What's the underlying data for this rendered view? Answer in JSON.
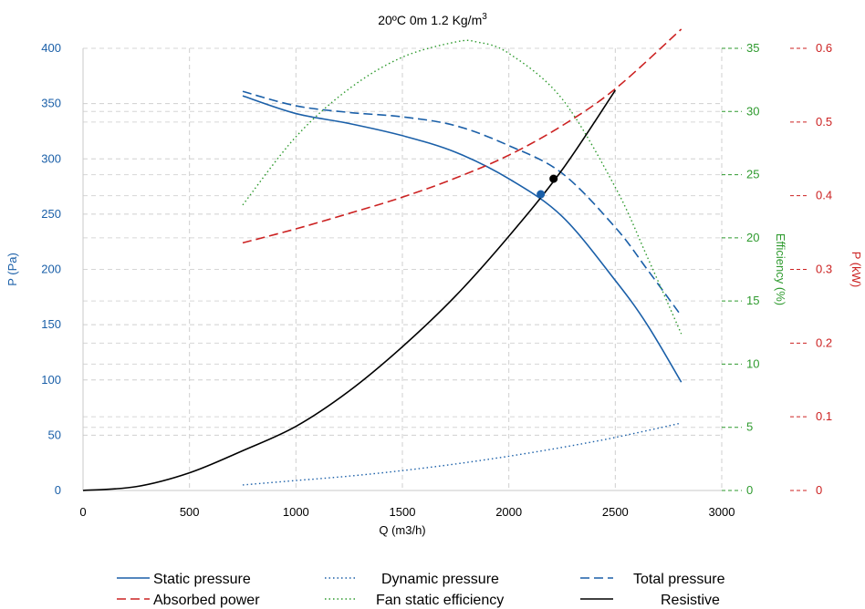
{
  "chart_data": {
    "type": "line",
    "title": "20ºC 0m 1.2 Kg/m",
    "title_sup": "3",
    "xlabel": "Q (m3/h)",
    "xlim": [
      0,
      3000
    ],
    "x_ticks": [
      "0",
      "500",
      "1000",
      "1500",
      "2000",
      "2500",
      "3000"
    ],
    "axes": {
      "pressure": {
        "label": "P (Pa)",
        "lim": [
          0,
          400
        ],
        "ticks": [
          "0",
          "50",
          "100",
          "150",
          "200",
          "250",
          "300",
          "350",
          "400"
        ],
        "color": "#1a5fa8"
      },
      "efficiency": {
        "label": "Efficiency (%)",
        "lim": [
          0,
          35
        ],
        "ticks": [
          "0",
          "5",
          "10",
          "15",
          "20",
          "25",
          "30",
          "35"
        ],
        "color": "#2e9a2e"
      },
      "power": {
        "label": "P (kW)",
        "lim": [
          0,
          0.6
        ],
        "ticks": [
          "0",
          "0.1",
          "0.2",
          "0.3",
          "0.4",
          "0.5",
          "0.6"
        ],
        "color": "#cc2222"
      }
    },
    "grid": true,
    "legend_position": "bottom",
    "series": [
      {
        "name": "Static pressure",
        "axis": "pressure",
        "color": "#1a5fa8",
        "dash": "solid",
        "x": [
          750,
          1000,
          1250,
          1500,
          1750,
          2000,
          2250,
          2500,
          2650,
          2810
        ],
        "y": [
          357,
          341,
          332,
          321,
          306,
          282,
          248,
          190,
          150,
          98
        ]
      },
      {
        "name": "Dynamic pressure",
        "axis": "pressure",
        "color": "#1a5fa8",
        "dash": "dotted",
        "x": [
          750,
          1000,
          1250,
          1500,
          1750,
          2000,
          2250,
          2500,
          2810
        ],
        "y": [
          5,
          9,
          13,
          18,
          24,
          31,
          39,
          48,
          61
        ]
      },
      {
        "name": "Total pressure",
        "axis": "pressure",
        "color": "#1a5fa8",
        "dash": "dashed",
        "x": [
          750,
          1000,
          1250,
          1500,
          1750,
          2000,
          2250,
          2500,
          2650,
          2810
        ],
        "y": [
          361,
          348,
          342,
          338,
          330,
          312,
          287,
          238,
          200,
          158
        ]
      },
      {
        "name": "Absorbed power",
        "axis": "power",
        "color": "#cc2222",
        "dash": "dashed",
        "x": [
          750,
          1000,
          1250,
          1500,
          1750,
          2000,
          2250,
          2500,
          2810
        ],
        "y": [
          0.336,
          0.355,
          0.376,
          0.398,
          0.424,
          0.455,
          0.495,
          0.545,
          0.626
        ]
      },
      {
        "name": "Fan static efficiency",
        "axis": "efficiency",
        "color": "#2e9a2e",
        "dash": "dotted",
        "x": [
          750,
          1000,
          1250,
          1500,
          1750,
          1850,
          2000,
          2250,
          2500,
          2650,
          2810
        ],
        "y": [
          22.6,
          28.0,
          31.8,
          34.3,
          35.5,
          35.5,
          34.6,
          31.0,
          24.0,
          18.5,
          12.4
        ]
      },
      {
        "name": "Resistive",
        "axis": "pressure",
        "color": "#000000",
        "dash": "solid",
        "x": [
          0,
          250,
          500,
          750,
          1000,
          1250,
          1500,
          1750,
          2000,
          2250,
          2500
        ],
        "y": [
          0,
          3.5,
          16,
          36,
          58,
          90,
          130,
          176,
          230,
          290,
          362
        ]
      }
    ],
    "points": [
      {
        "axis": "pressure",
        "x": 2150,
        "y": 268,
        "color": "#1a5fa8"
      },
      {
        "axis": "pressure",
        "x": 2210,
        "y": 282,
        "color": "#000000"
      }
    ]
  }
}
